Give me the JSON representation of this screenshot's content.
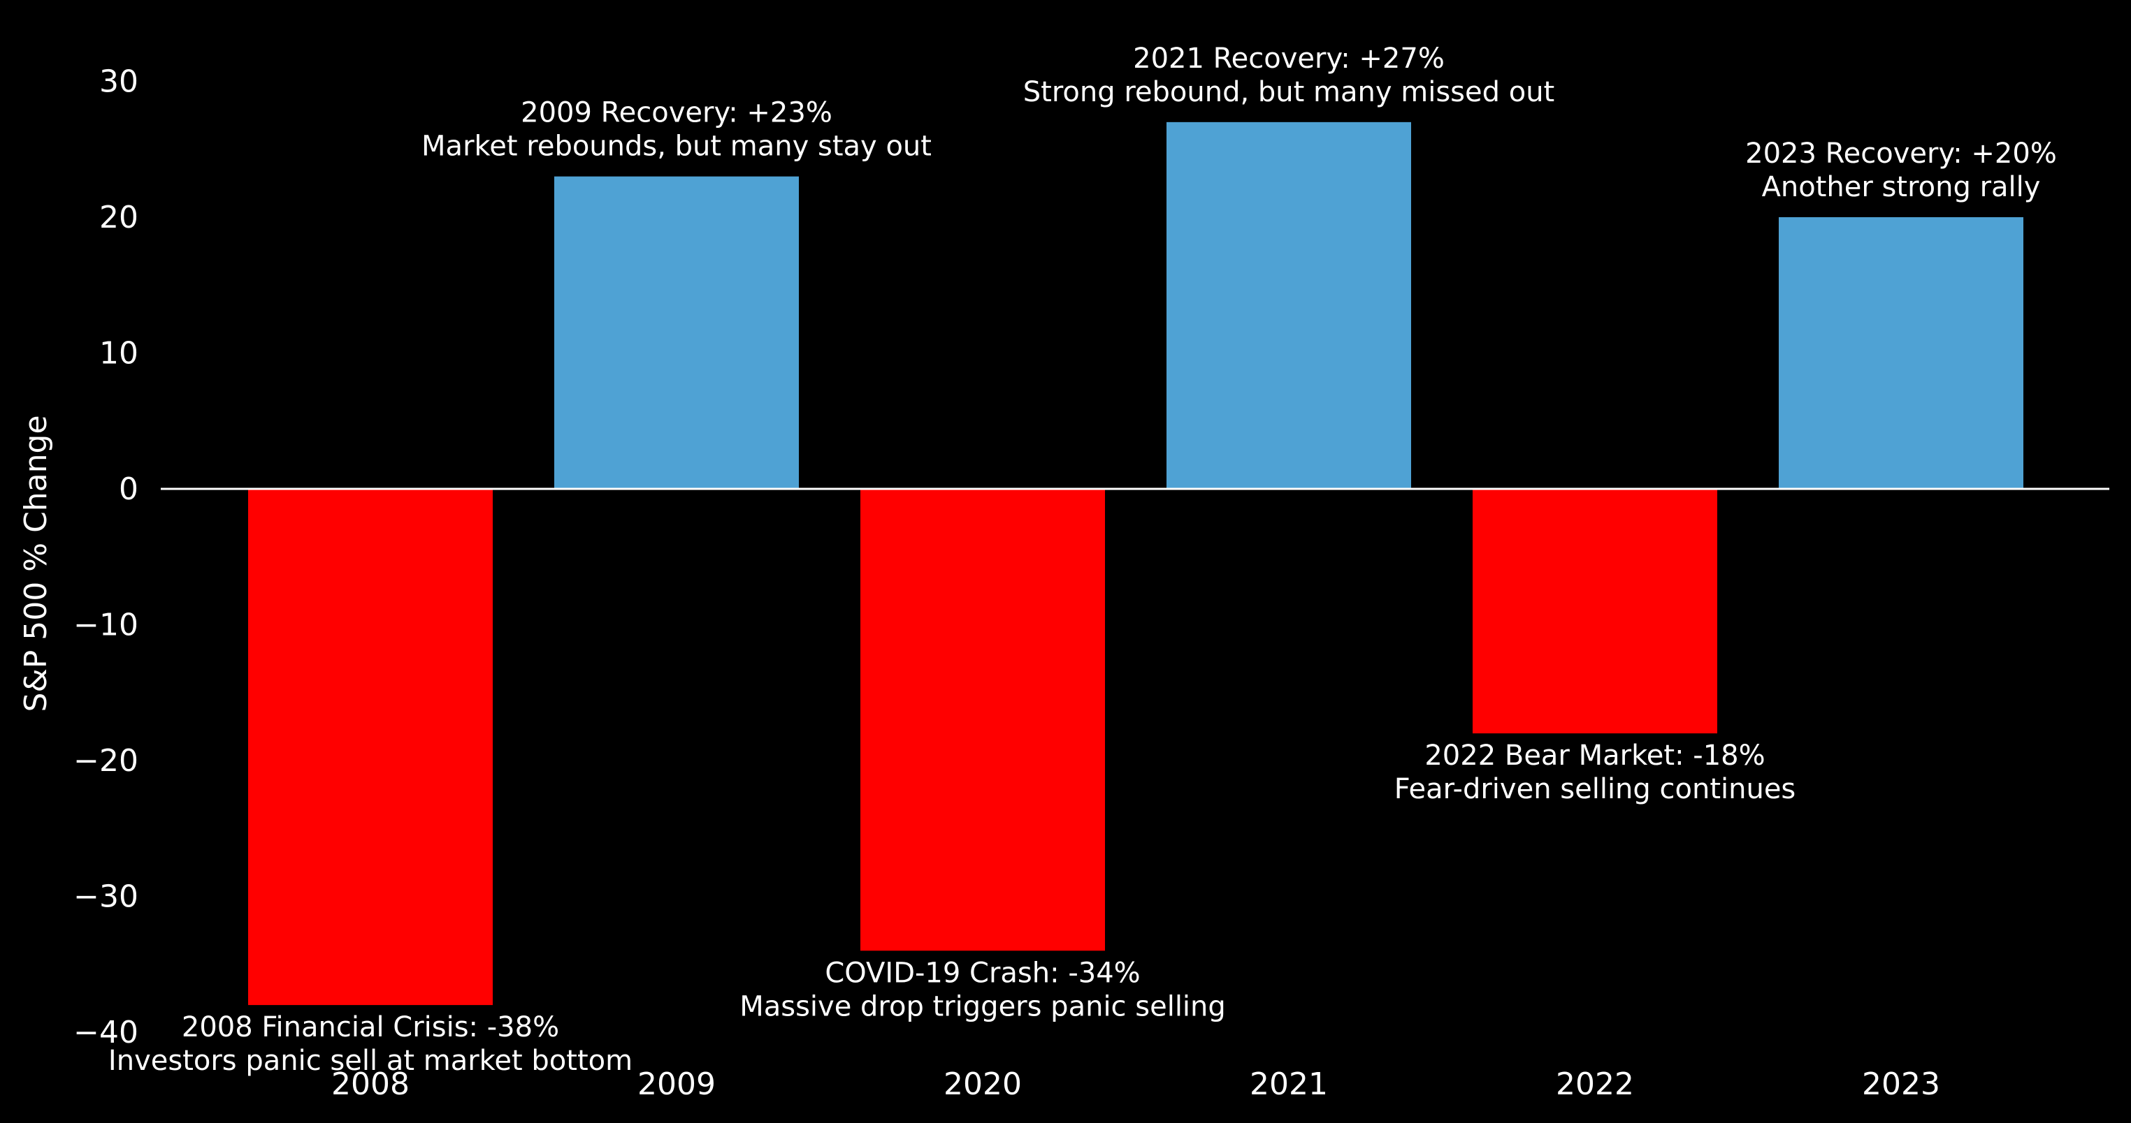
{
  "chart_data": {
    "type": "bar",
    "title": "",
    "xlabel": "",
    "ylabel": "S&P 500 % Change",
    "categories": [
      "2008",
      "2009",
      "2020",
      "2021",
      "2022",
      "2023"
    ],
    "values": [
      -38,
      23,
      -34,
      27,
      -18,
      20
    ],
    "ylim": [
      -40,
      33
    ],
    "yticks": [
      30,
      20,
      10,
      0,
      -10,
      -20,
      -30,
      -40
    ],
    "ytick_labels": [
      "30",
      "20",
      "10",
      "0",
      "−10",
      "−20",
      "−30",
      "−40"
    ],
    "grid": false,
    "legend": "none",
    "colors": {
      "background": "#000000",
      "positive": "#4fa2d4",
      "negative": "#ff0000",
      "zero_line": "#ffffff",
      "text": "#ffffff"
    },
    "annotations": [
      {
        "category": "2008",
        "lines": [
          "2008 Financial Crisis: -38%",
          "Investors panic sell at market bottom"
        ]
      },
      {
        "category": "2009",
        "lines": [
          "2009 Recovery: +23%",
          "Market rebounds, but many stay out"
        ]
      },
      {
        "category": "2020",
        "lines": [
          "COVID-19 Crash: -34%",
          "Massive drop triggers panic selling"
        ]
      },
      {
        "category": "2021",
        "lines": [
          "2021 Recovery: +27%",
          "Strong rebound, but many missed out"
        ]
      },
      {
        "category": "2022",
        "lines": [
          "2022 Bear Market: -18%",
          "Fear-driven selling continues"
        ]
      },
      {
        "category": "2023",
        "lines": [
          "2023 Recovery: +20%",
          "Another strong rally"
        ]
      }
    ]
  }
}
